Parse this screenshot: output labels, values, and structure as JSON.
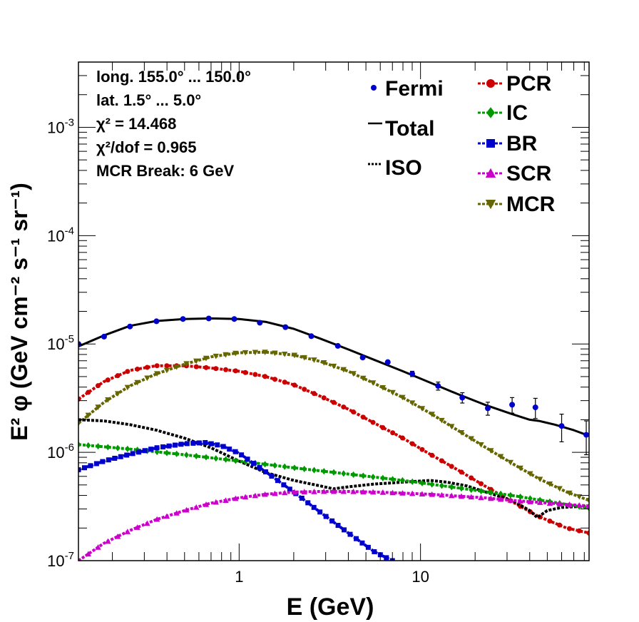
{
  "chart_data": {
    "type": "line",
    "title": "",
    "xlabel": "E (GeV)",
    "ylabel": "E² φ (GeV cm⁻² s⁻¹ sr⁻¹)",
    "x_scale": "log",
    "y_scale": "log",
    "xlim": [
      0.13,
      85
    ],
    "ylim": [
      1e-07,
      0.004
    ],
    "x_tick_labels": [
      {
        "value": 1,
        "label": "1"
      },
      {
        "value": 10,
        "label": "10"
      }
    ],
    "y_tick_labels": [
      {
        "value": 1e-07,
        "base": "10",
        "exp": "-7"
      },
      {
        "value": 1e-06,
        "base": "10",
        "exp": "-6"
      },
      {
        "value": 1e-05,
        "base": "10",
        "exp": "-5"
      },
      {
        "value": 0.0001,
        "base": "10",
        "exp": "-4"
      },
      {
        "value": 0.001,
        "base": "10",
        "exp": "-3"
      }
    ],
    "info_box": [
      "long. 155.0° ... 150.0°",
      "lat. 1.5° ... 5.0°",
      "χ² = 14.468",
      "χ²/dof = 0.965",
      "MCR Break:  6 GeV"
    ],
    "legend_left": [
      {
        "name": "Fermi",
        "style": "points"
      },
      {
        "name": "Total",
        "style": "solid"
      },
      {
        "name": "ISO",
        "style": "dotted"
      }
    ],
    "legend_right": [
      {
        "name": "PCR",
        "color": "#cc0000",
        "marker": "circle"
      },
      {
        "name": "IC",
        "color": "#009900",
        "marker": "diamond"
      },
      {
        "name": "BR",
        "color": "#0000cc",
        "marker": "square"
      },
      {
        "name": "SCR",
        "color": "#cc00cc",
        "marker": "triangle-up"
      },
      {
        "name": "MCR",
        "color": "#666600",
        "marker": "triangle-down"
      }
    ],
    "fermi_points": [
      {
        "x": 0.13,
        "y": 1e-05,
        "err": 0
      },
      {
        "x": 0.18,
        "y": 1.17e-05,
        "err": 0
      },
      {
        "x": 0.25,
        "y": 1.45e-05,
        "err": 0
      },
      {
        "x": 0.35,
        "y": 1.62e-05,
        "err": 0
      },
      {
        "x": 0.49,
        "y": 1.7e-05,
        "err": 0
      },
      {
        "x": 0.68,
        "y": 1.72e-05,
        "err": 0
      },
      {
        "x": 0.94,
        "y": 1.7e-05,
        "err": 0
      },
      {
        "x": 1.3,
        "y": 1.57e-05,
        "err": 0
      },
      {
        "x": 1.8,
        "y": 1.43e-05,
        "err": 0
      },
      {
        "x": 2.5,
        "y": 1.18e-05,
        "err": 0
      },
      {
        "x": 3.5,
        "y": 9.6e-06,
        "err": 0
      },
      {
        "x": 4.8,
        "y": 7.5e-06,
        "err": 0
      },
      {
        "x": 6.6,
        "y": 6.8e-06,
        "err": 0
      },
      {
        "x": 9.0,
        "y": 5.3e-06,
        "err": 3e-07
      },
      {
        "x": 12.5,
        "y": 4.1e-06,
        "err": 3.5e-07
      },
      {
        "x": 17.0,
        "y": 3.2e-06,
        "err": 3.5e-07
      },
      {
        "x": 23.5,
        "y": 2.55e-06,
        "err": 3.5e-07
      },
      {
        "x": 32.0,
        "y": 2.75e-06,
        "err": 4.5e-07
      },
      {
        "x": 43.0,
        "y": 2.6e-06,
        "err": 5.5e-07
      },
      {
        "x": 60.0,
        "y": 1.75e-06,
        "err": 5e-07
      },
      {
        "x": 82.0,
        "y": 1.45e-06,
        "err": 5e-07
      }
    ],
    "series": [
      {
        "name": "Total",
        "color": "#000000",
        "dash": "solid",
        "width": 3,
        "marker": "none",
        "x": [
          0.13,
          0.18,
          0.25,
          0.35,
          0.5,
          0.7,
          1.0,
          1.4,
          2.0,
          2.8,
          4.0,
          5.6,
          8.0,
          11.3,
          16.0,
          22.6,
          32.0,
          40.0,
          45.0,
          55.0,
          70.0,
          85.0
        ],
        "y": [
          9.5e-06,
          1.2e-05,
          1.47e-05,
          1.63e-05,
          1.7e-05,
          1.72e-05,
          1.7e-05,
          1.6e-05,
          1.38e-05,
          1.12e-05,
          8.9e-06,
          7.1e-06,
          5.6e-06,
          4.4e-06,
          3.45e-06,
          2.75e-06,
          2.25e-06,
          2e-06,
          1.95e-06,
          1.8e-06,
          1.6e-06,
          1.42e-06
        ]
      },
      {
        "name": "PCR",
        "color": "#cc0000",
        "dash": "dotted",
        "width": 4,
        "marker": "circle",
        "x": [
          0.13,
          0.18,
          0.25,
          0.35,
          0.5,
          0.7,
          1.0,
          1.4,
          2.0,
          2.8,
          4.0,
          5.6,
          8.0,
          11.3,
          16.0,
          22.6,
          32.0,
          45.0,
          64.0,
          85.0
        ],
        "y": [
          3.1e-06,
          4.5e-06,
          5.7e-06,
          6.3e-06,
          6.3e-06,
          6e-06,
          5.6e-06,
          5e-06,
          4.2e-06,
          3.3e-06,
          2.5e-06,
          1.85e-06,
          1.35e-06,
          9.6e-07,
          6.9e-07,
          4.9e-07,
          3.5e-07,
          2.55e-07,
          2e-07,
          1.8e-07
        ]
      },
      {
        "name": "MCR",
        "color": "#666600",
        "dash": "dotted",
        "width": 4,
        "marker": "triangle-down",
        "x": [
          0.13,
          0.18,
          0.25,
          0.35,
          0.5,
          0.7,
          1.0,
          1.4,
          2.0,
          2.8,
          4.0,
          5.6,
          8.0,
          11.3,
          16.0,
          22.6,
          32.0,
          45.0,
          64.0,
          85.0
        ],
        "y": [
          1.85e-06,
          2.9e-06,
          4.1e-06,
          5.3e-06,
          6.5e-06,
          7.6e-06,
          8.3e-06,
          8.4e-06,
          7.9e-06,
          6.9e-06,
          5.6e-06,
          4.3e-06,
          3.2e-06,
          2.3e-06,
          1.6e-06,
          1.12e-06,
          7.9e-07,
          5.7e-07,
          4.3e-07,
          3.6e-07
        ]
      },
      {
        "name": "ISO",
        "color": "#000000",
        "dash": "dotted",
        "width": 4,
        "marker": "none",
        "x": [
          0.13,
          0.18,
          0.25,
          0.35,
          0.5,
          0.7,
          1.0,
          1.4,
          2.0,
          2.8,
          3.3,
          4.0,
          5.6,
          8.0,
          11.3,
          14.0,
          18.0,
          25.0,
          32.0,
          40.0,
          44.0,
          50.0,
          60.0,
          85.0
        ],
        "y": [
          2e-06,
          1.95e-06,
          1.8e-06,
          1.6e-06,
          1.35e-06,
          1.1e-06,
          8.3e-07,
          6.5e-07,
          5.5e-07,
          4.9e-07,
          4.6e-07,
          4.8e-07,
          5.1e-07,
          5.3e-07,
          5.5e-07,
          5.3e-07,
          4.9e-07,
          4.1e-07,
          3.6e-07,
          2.9e-07,
          2.5e-07,
          2.9e-07,
          3.1e-07,
          3.2e-07
        ]
      },
      {
        "name": "IC",
        "color": "#009900",
        "dash": "dotted",
        "width": 4,
        "marker": "diamond",
        "x": [
          0.13,
          0.25,
          0.5,
          1.0,
          2.0,
          4.0,
          8.0,
          16.0,
          32.0,
          64.0,
          85.0
        ],
        "y": [
          1.18e-06,
          1.07e-06,
          9.5e-07,
          8.3e-07,
          7.2e-07,
          6.3e-07,
          5.5e-07,
          4.7e-07,
          4e-07,
          3.3e-07,
          3.05e-07
        ]
      },
      {
        "name": "BR",
        "color": "#0000cc",
        "dash": "dotted",
        "width": 4,
        "marker": "square",
        "x": [
          0.13,
          0.18,
          0.25,
          0.35,
          0.5,
          0.65,
          0.8,
          1.0,
          1.4,
          2.0,
          2.8,
          4.0,
          5.6,
          7.0
        ],
        "y": [
          6.9e-07,
          8.3e-07,
          9.6e-07,
          1.1e-06,
          1.2e-06,
          1.23e-06,
          1.15e-06,
          9.8e-07,
          6.6e-07,
          4.3e-07,
          2.8e-07,
          1.8e-07,
          1.2e-07,
          1e-07
        ]
      },
      {
        "name": "SCR",
        "color": "#cc00cc",
        "dash": "dotted",
        "width": 4,
        "marker": "triangle-up",
        "x": [
          0.13,
          0.18,
          0.25,
          0.35,
          0.5,
          0.7,
          1.0,
          1.4,
          2.0,
          2.8,
          4.0,
          5.6,
          8.0,
          11.3,
          16.0,
          22.6,
          32.0,
          45.0,
          64.0,
          85.0
        ],
        "y": [
          1e-07,
          1.45e-07,
          1.9e-07,
          2.4e-07,
          2.9e-07,
          3.4e-07,
          3.8e-07,
          4.1e-07,
          4.3e-07,
          4.35e-07,
          4.35e-07,
          4.3e-07,
          4.2e-07,
          4.1e-07,
          3.95e-07,
          3.8e-07,
          3.6e-07,
          3.45e-07,
          3.3e-07,
          3.2e-07
        ]
      }
    ]
  }
}
